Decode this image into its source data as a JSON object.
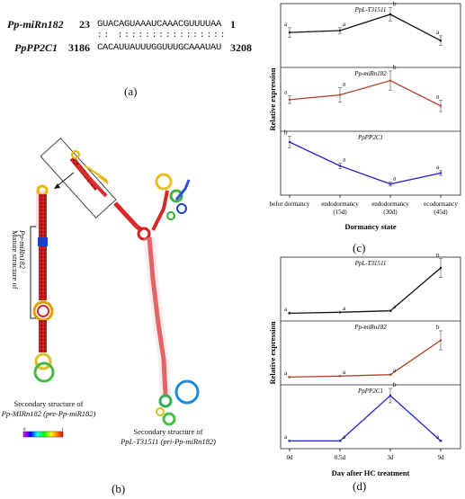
{
  "panels": {
    "a": {
      "label": "(a)",
      "mirna_name": "Pp-miRn182",
      "mirna_start": "23",
      "mirna_seq": "GUACAGUAAAUCAAACGUUUUAA",
      "mirna_end": "1",
      "pairing": ": :   : : : : : : : : : : : : : : : :",
      "target_name": "PpPP2C1",
      "target_start": "3186",
      "target_seq": "CACAUUAUUUGGUUUGCAAAUAU",
      "target_end": "3208"
    },
    "b": {
      "label": "(b)",
      "mature_label_line1": "Mature structure of",
      "mature_label_line2": "Pp-miRn182",
      "pre_caption_line1": "Secondary structure of",
      "pre_caption_line2": "Pp-MIRn182 (pre-Pp-miR182)",
      "pri_caption_line1": "Secondary structure of",
      "pri_caption_line2": "PpL-T31511 (pri-Pp-miRn182)",
      "color_scale": [
        "#ff00ff",
        "#0000ff",
        "#00ffff",
        "#00ff00",
        "#ffff00",
        "#ff8000",
        "#ff0000"
      ],
      "scale_min": "0",
      "scale_max": "1"
    },
    "c": {
      "label": "(c)",
      "ylabel": "Relative expression",
      "xlabel": "Dormancy state",
      "ticks": [
        {
          "l1": "befor dormancy",
          "l2": ""
        },
        {
          "l1": "endodormancy",
          "l2": "(15d)"
        },
        {
          "l1": "endodormancy",
          "l2": "(30d)"
        },
        {
          "l1": "ecodormancy",
          "l2": "(45d)"
        }
      ]
    },
    "d": {
      "label": "(d)",
      "ylabel": "Relative expression",
      "xlabel": "Day after HC treatment",
      "ticks": [
        {
          "l1": "0d",
          "l2": ""
        },
        {
          "l1": "0.5d",
          "l2": ""
        },
        {
          "l1": "3d",
          "l2": ""
        },
        {
          "l1": "9d",
          "l2": ""
        }
      ]
    }
  },
  "chart_data": [
    {
      "type": "line",
      "panel": "c",
      "categories": [
        "befor dormancy",
        "endodormancy (15d)",
        "endodormancy (30d)",
        "ecodormancy (45d)"
      ],
      "xlabel": "Dormancy state",
      "ylabel": "Relative expression",
      "series": [
        {
          "name": "PpL-T31511",
          "color": "#111111",
          "values": [
            0.62,
            0.66,
            1.0,
            0.45
          ],
          "errors": [
            0.1,
            0.06,
            0.14,
            0.1
          ],
          "letters": [
            "a",
            "a",
            "b",
            "a"
          ]
        },
        {
          "name": "Pp-miRn182",
          "color": "#b5432b",
          "values": [
            0.55,
            0.65,
            0.95,
            0.42
          ],
          "errors": [
            0.08,
            0.15,
            0.2,
            0.12
          ],
          "letters": [
            "a",
            "a",
            "b",
            "a"
          ]
        },
        {
          "name": "PpPP2C1",
          "color": "#2424c8",
          "values": [
            1.0,
            0.5,
            0.12,
            0.35
          ],
          "errors": [
            0.12,
            0.06,
            0.04,
            0.05
          ],
          "letters": [
            "b",
            "a",
            "a",
            "a"
          ]
        }
      ]
    },
    {
      "type": "line",
      "panel": "d",
      "categories": [
        "0d",
        "0.5d",
        "3d",
        "9d"
      ],
      "xlabel": "Day after HC treatment",
      "ylabel": "Relative expression",
      "series": [
        {
          "name": "PpL-T31511",
          "color": "#111111",
          "values": [
            0.05,
            0.07,
            0.1,
            1.0
          ],
          "errors": [
            0.01,
            0.01,
            0.01,
            0.2
          ],
          "letters": [
            "a",
            "a",
            "a",
            "b"
          ]
        },
        {
          "name": "Pp-miRn182",
          "color": "#b5432b",
          "values": [
            0.05,
            0.07,
            0.1,
            0.82
          ],
          "errors": [
            0.01,
            0.01,
            0.01,
            0.2
          ],
          "letters": [
            "a",
            "a",
            "a",
            "b"
          ]
        },
        {
          "name": "PpPP2C1",
          "color": "#2424c8",
          "values": [
            0.05,
            0.05,
            1.0,
            0.05
          ],
          "errors": [
            0.01,
            0.01,
            0.15,
            0.01
          ],
          "letters": [
            "a",
            "a",
            "b",
            "a"
          ]
        }
      ]
    }
  ]
}
